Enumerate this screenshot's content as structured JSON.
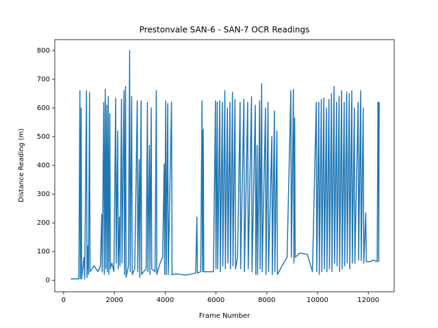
{
  "chart_data": {
    "type": "line",
    "title": "Prestonvale SAN-6 - SAN-7 OCR Readings",
    "x_label": "Frame Number",
    "y_label": "Distance Reading (m)",
    "color": "#1f77b4",
    "xlim": [
      -350,
      13020
    ],
    "ylim": [
      -40,
      838
    ],
    "xticks": [
      0,
      2000,
      4000,
      6000,
      8000,
      10000,
      12000
    ],
    "yticks": [
      0,
      100,
      200,
      300,
      400,
      500,
      600,
      700,
      800
    ],
    "x": [
      280,
      600,
      640,
      660,
      690,
      710,
      800,
      830,
      900,
      920,
      960,
      980,
      1020,
      1040,
      1200,
      1350,
      1450,
      1500,
      1520,
      1580,
      1600,
      1640,
      1660,
      1700,
      1720,
      1760,
      1780,
      1820,
      1840,
      1900,
      1980,
      2050,
      2070,
      2130,
      2150,
      2200,
      2220,
      2280,
      2300,
      2380,
      2400,
      2440,
      2460,
      2550,
      2600,
      2620,
      2680,
      2700,
      2800,
      2900,
      2920,
      2980,
      3000,
      3050,
      3070,
      3150,
      3250,
      3300,
      3320,
      3380,
      3400,
      3450,
      3470,
      3600,
      3650,
      3670,
      3800,
      3900,
      3960,
      3980,
      4020,
      4040,
      4100,
      4120,
      4250,
      4270,
      4500,
      4800,
      5200,
      5250,
      5270,
      5400,
      5450,
      5470,
      5500,
      5520,
      5900,
      5980,
      6000,
      6050,
      6070,
      6150,
      6170,
      6250,
      6270,
      6350,
      6370,
      6450,
      6470,
      6550,
      6570,
      6650,
      6670,
      6750,
      6770,
      6850,
      6950,
      6970,
      7100,
      7120,
      7250,
      7270,
      7400,
      7420,
      7550,
      7570,
      7620,
      7640,
      7720,
      7740,
      7800,
      7820,
      7950,
      7970,
      8050,
      8070,
      8200,
      8220,
      8300,
      8320,
      8400,
      8420,
      8600,
      8800,
      8950,
      8970,
      9050,
      9070,
      9100,
      9120,
      9300,
      9600,
      9800,
      9950,
      9970,
      10050,
      10070,
      10150,
      10170,
      10250,
      10270,
      10350,
      10370,
      10450,
      10470,
      10550,
      10570,
      10650,
      10670,
      10750,
      10770,
      10850,
      10870,
      10950,
      10970,
      11050,
      11070,
      11150,
      11170,
      11250,
      11270,
      11350,
      11370,
      11450,
      11470,
      11600,
      11620,
      11700,
      11720,
      11800,
      11820,
      11900,
      11920,
      12050,
      12200,
      12350,
      12380,
      12400,
      12410,
      12430
    ],
    "values": [
      5,
      5,
      660,
      5,
      600,
      5,
      80,
      5,
      660,
      10,
      120,
      20,
      655,
      30,
      50,
      30,
      50,
      230,
      30,
      620,
      20,
      665,
      40,
      610,
      30,
      640,
      20,
      580,
      40,
      60,
      30,
      635,
      60,
      520,
      40,
      220,
      50,
      630,
      60,
      660,
      20,
      675,
      10,
      50,
      800,
      30,
      640,
      20,
      40,
      625,
      30,
      420,
      10,
      625,
      20,
      30,
      40,
      620,
      30,
      470,
      20,
      600,
      40,
      30,
      660,
      20,
      60,
      80,
      405,
      20,
      625,
      20,
      615,
      20,
      620,
      20,
      22,
      18,
      25,
      220,
      25,
      30,
      625,
      30,
      525,
      30,
      30,
      625,
      40,
      620,
      40,
      625,
      30,
      620,
      50,
      660,
      40,
      600,
      60,
      620,
      40,
      655,
      50,
      630,
      40,
      80,
      620,
      40,
      630,
      30,
      620,
      40,
      640,
      30,
      610,
      20,
      470,
      20,
      625,
      40,
      685,
      30,
      600,
      20,
      620,
      30,
      500,
      20,
      590,
      30,
      520,
      20,
      50,
      80,
      660,
      80,
      665,
      60,
      565,
      80,
      95,
      90,
      30,
      620,
      30,
      620,
      20,
      630,
      30,
      635,
      40,
      600,
      30,
      630,
      40,
      650,
      30,
      675,
      60,
      620,
      50,
      640,
      30,
      660,
      40,
      620,
      50,
      655,
      60,
      650,
      40,
      660,
      60,
      600,
      60,
      620,
      70,
      660,
      70,
      600,
      60,
      235,
      65,
      65,
      70,
      65,
      620,
      620,
      65,
      620
    ]
  }
}
